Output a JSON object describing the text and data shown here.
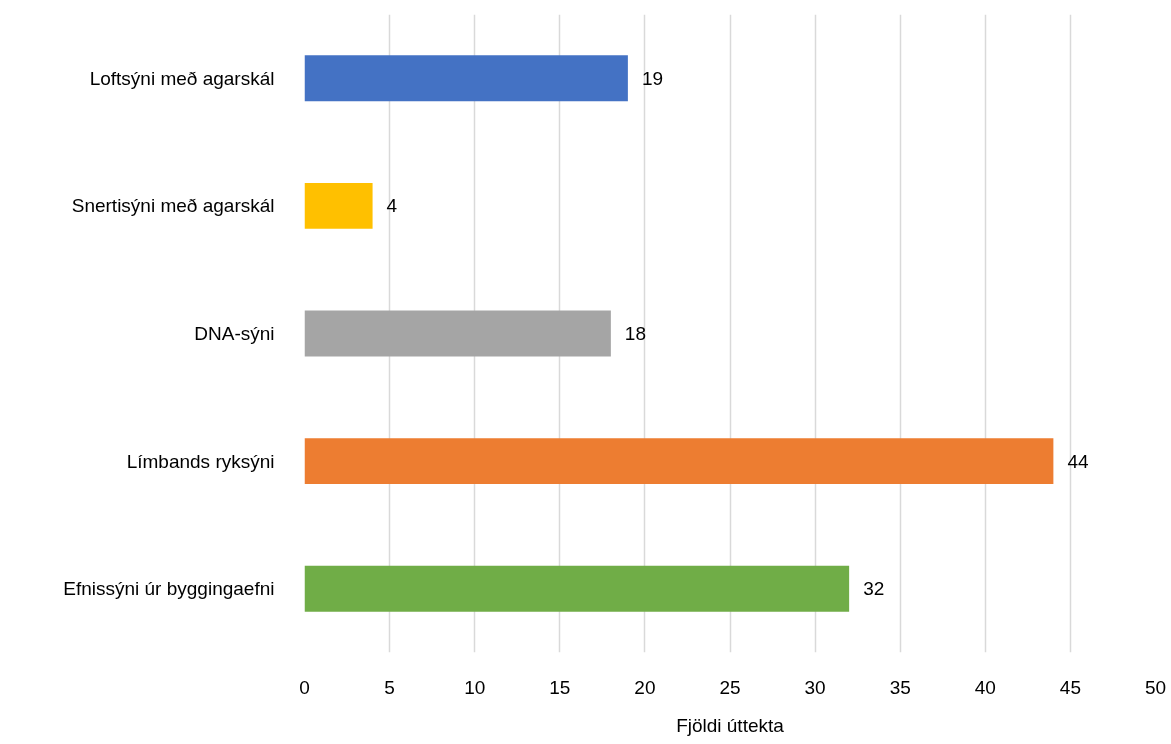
{
  "chart_data": {
    "type": "bar",
    "orientation": "horizontal",
    "xlabel": "Fjöldi úttekta",
    "categories": [
      "Loftsýni með agarskál",
      "Snertisýni með agarskál",
      "DNA-sýni",
      "Límbands ryksýni",
      "Efnissýni úr byggingaefni"
    ],
    "values": [
      19,
      4,
      18,
      44,
      32
    ],
    "colors": [
      "#4472c4",
      "#ffc000",
      "#a5a5a5",
      "#ed7d31",
      "#70ad47"
    ],
    "xlim": [
      0,
      50
    ],
    "xticks": [
      0,
      5,
      10,
      15,
      20,
      25,
      30,
      35,
      40,
      45,
      50
    ],
    "grid": "x",
    "data_labels": true
  }
}
